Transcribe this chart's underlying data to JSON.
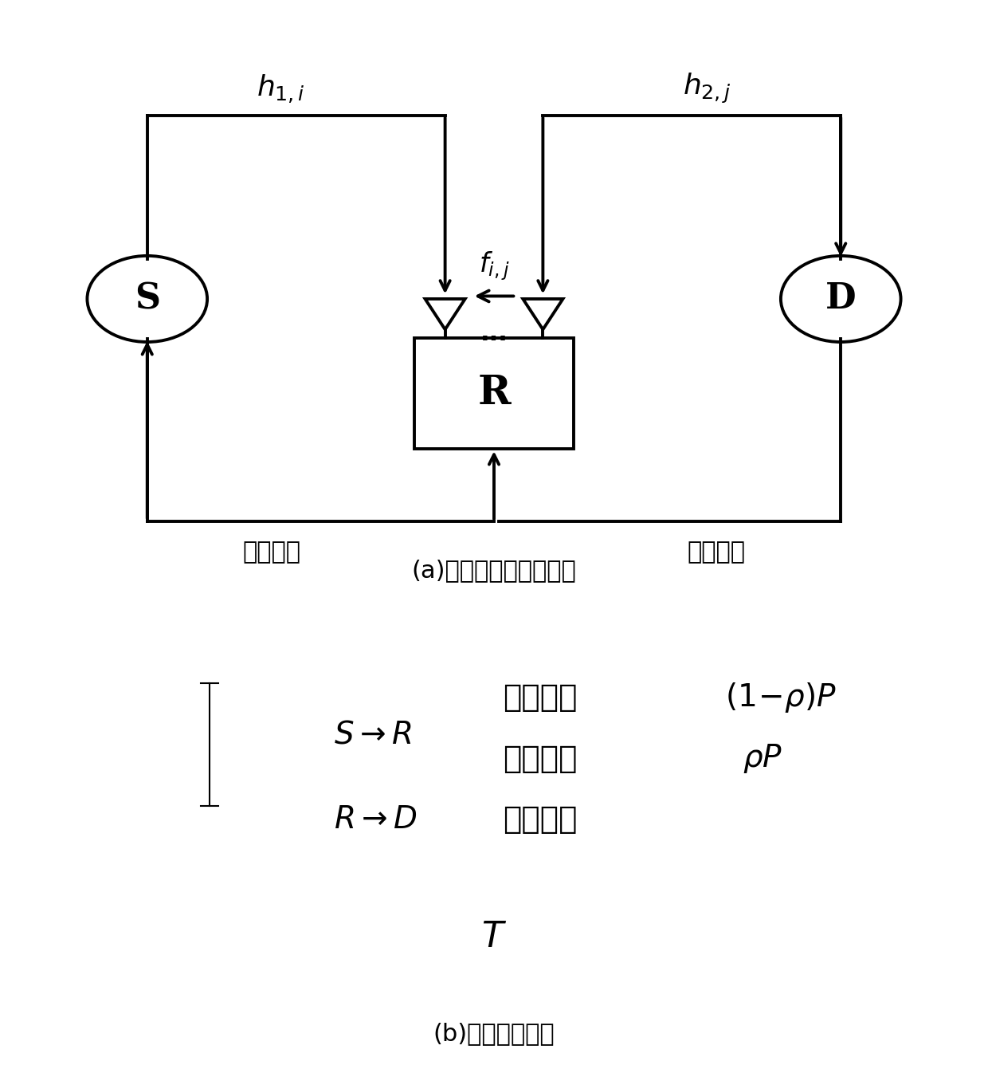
{
  "fig_width": 12.4,
  "fig_height": 13.41,
  "bg_color": "#ffffff",
  "caption_a": "(a)通信系统传输流程图",
  "caption_b": "(b)功率分配框图",
  "label_h1i": "$h_{1,i}$",
  "label_h2j": "$h_{2,j}$",
  "label_fij": "$f_{i,j}$",
  "label_S": "S",
  "label_R": "R",
  "label_D": "D",
  "label_feedback_left": "反馈信道",
  "label_feedback_right": "反馈信道",
  "label_dots": "...",
  "sr_arrow": "$S \\rightarrow R$",
  "rd_arrow": "$R \\rightarrow D$",
  "useful_info1": "有用信息",
  "useful_info2": "有用信息",
  "collect_energy": "采集能量",
  "power1": "$(1\\!-\\!\\rho)P$",
  "power2": "$\\rho P$",
  "time_label": "$T$",
  "lw": 2.8
}
